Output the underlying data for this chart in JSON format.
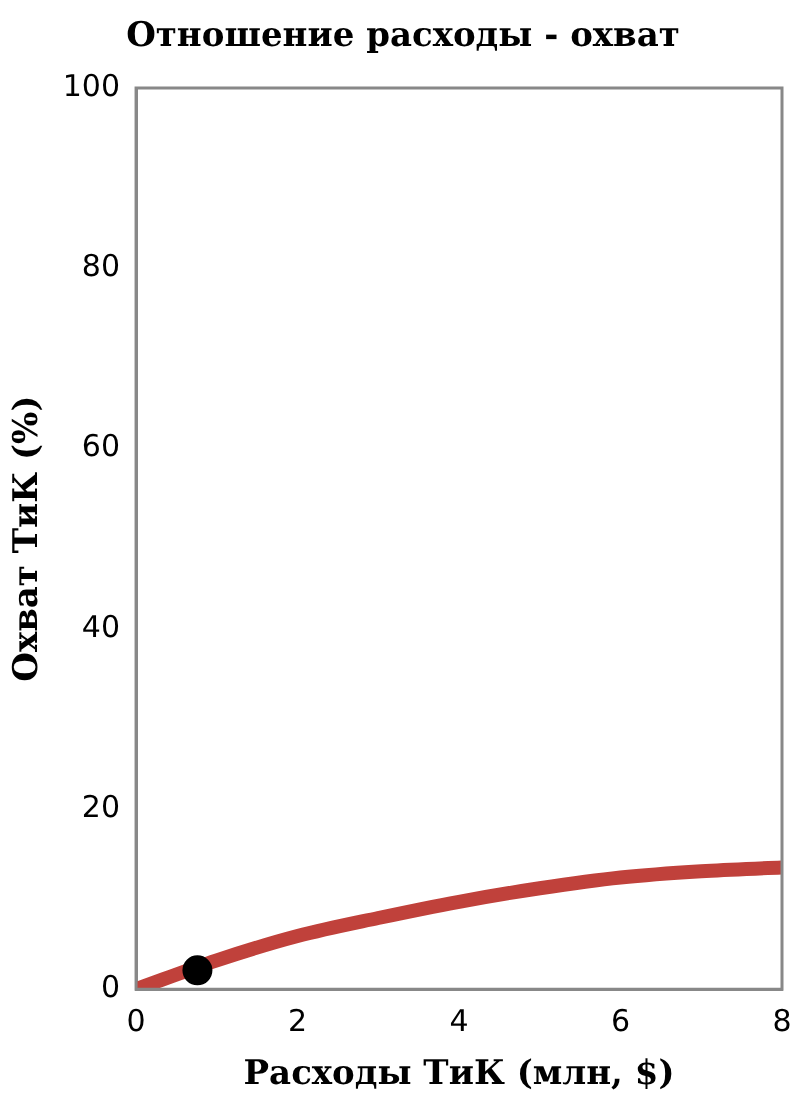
{
  "chart_data": {
    "type": "line",
    "title": "Отношение расходы - охват",
    "xlabel": "Расходы ТиК (млн, $)",
    "ylabel": "Охват ТиК (%)",
    "xlim": [
      0,
      8
    ],
    "xticks": [
      0,
      2,
      4,
      6,
      8
    ],
    "ylim": [
      0,
      100
    ],
    "yticks": [
      0,
      20,
      40,
      60,
      80,
      100
    ],
    "grid": false,
    "legend": false,
    "series": [
      {
        "color": "#c0413b",
        "x": [
          0,
          1,
          2,
          3,
          4,
          5,
          6,
          7,
          8
        ],
        "values": [
          0,
          3.2,
          5.9,
          7.9,
          9.7,
          11.2,
          12.4,
          13.1,
          13.5
        ]
      },
      {
        "type": "scatter",
        "color": "#000000",
        "x": [
          0.76
        ],
        "values": [
          2.1
        ]
      }
    ]
  }
}
